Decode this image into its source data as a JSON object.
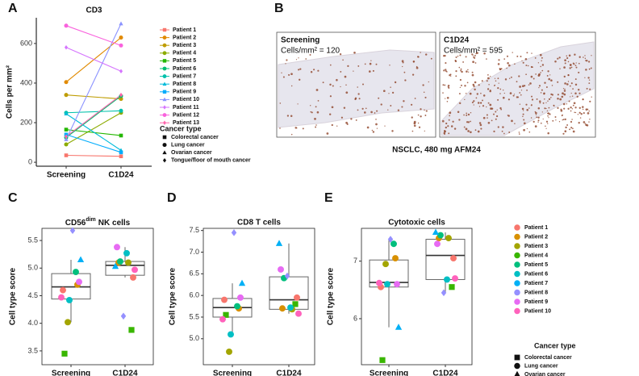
{
  "chart_data": [
    {
      "type": "line",
      "panel": "A",
      "title": "CD3",
      "y_label": "Cells per mm²",
      "categories": [
        "Screening",
        "C1D24"
      ],
      "ylim": [
        -20,
        730
      ],
      "yticks": [
        0,
        200,
        400,
        600
      ],
      "series": [
        {
          "name": "Patient 1",
          "color": "#F8766D",
          "marker": "square",
          "values": [
            35,
            30
          ]
        },
        {
          "name": "Patient 2",
          "color": "#E18A00",
          "marker": "circle",
          "values": [
            405,
            630
          ]
        },
        {
          "name": "Patient 3",
          "color": "#BE9C00",
          "marker": "circle",
          "values": [
            340,
            320
          ]
        },
        {
          "name": "Patient 4",
          "color": "#8CAB00",
          "marker": "circle",
          "values": [
            90,
            250
          ]
        },
        {
          "name": "Patient 5",
          "color": "#24B700",
          "marker": "square",
          "values": [
            165,
            135
          ]
        },
        {
          "name": "Patient 6",
          "color": "#00BE70",
          "marker": "circle",
          "values": [
            125,
            335
          ]
        },
        {
          "name": "Patient 7",
          "color": "#00C1AB",
          "marker": "circle",
          "values": [
            250,
            260
          ]
        },
        {
          "name": "Patient 8",
          "color": "#00BBDA",
          "marker": "triangle",
          "values": [
            245,
            60
          ]
        },
        {
          "name": "Patient 9",
          "color": "#00ACFC",
          "marker": "square",
          "values": [
            140,
            50
          ]
        },
        {
          "name": "Patient 10",
          "color": "#8B93FF",
          "marker": "triangle",
          "values": [
            115,
            700
          ]
        },
        {
          "name": "Patient 11",
          "color": "#D575FE",
          "marker": "diamond",
          "values": [
            580,
            460
          ]
        },
        {
          "name": "Patient 12",
          "color": "#F962DD",
          "marker": "circle",
          "values": [
            690,
            590
          ]
        },
        {
          "name": "Patient 13",
          "color": "#FF65AC",
          "marker": "diamond",
          "values": [
            130,
            340
          ]
        }
      ],
      "legend_title": "Cancer type",
      "cancer_types": [
        {
          "name": "Colorectal cancer",
          "marker": "square"
        },
        {
          "name": "Lung cancer",
          "marker": "circle"
        },
        {
          "name": "Ovarian cancer",
          "marker": "triangle"
        },
        {
          "name": "Tongue/floor of mouth cancer",
          "marker": "diamond"
        }
      ]
    },
    {
      "type": "box",
      "panel": "C",
      "title_parts": [
        "CD56",
        "dim",
        "NK cells"
      ],
      "y_label": "Cell type score",
      "categories": [
        "Screening",
        "C1D24"
      ],
      "ylim": [
        3.25,
        5.72
      ],
      "yticks": [
        3.5,
        {
          "value": 4,
          "label": "4.0"
        },
        4.5,
        {
          "value": 5,
          "label": "5.0"
        },
        5.5
      ],
      "boxes": [
        {
          "q1": 4.44,
          "median": 4.66,
          "q3": 4.9,
          "whisker_low": 4.02,
          "whisker_high": 5.15
        },
        {
          "q1": 4.87,
          "median": 5.05,
          "q3": 5.12,
          "whisker_low": 4.83,
          "whisker_high": 5.38
        }
      ],
      "series": [
        {
          "name": "Patient 1",
          "color": "#F8766D",
          "marker": "circle",
          "values": [
            4.6,
            4.83
          ]
        },
        {
          "name": "Patient 2",
          "color": "#D89000",
          "marker": "circle",
          "values": [
            4.7,
            5.1
          ]
        },
        {
          "name": "Patient 3",
          "color": "#A3A500",
          "marker": "circle",
          "values": [
            4.02,
            5.1
          ]
        },
        {
          "name": "Patient 4",
          "color": "#39B600",
          "marker": "square",
          "values": [
            3.45,
            3.88
          ]
        },
        {
          "name": "Patient 5",
          "color": "#00BF7D",
          "marker": "circle",
          "values": [
            4.93,
            5.12
          ]
        },
        {
          "name": "Patient 6",
          "color": "#00BFC4",
          "marker": "circle",
          "values": [
            4.42,
            5.27
          ]
        },
        {
          "name": "Patient 7",
          "color": "#00B0F6",
          "marker": "triangle",
          "values": [
            5.15,
            5.03
          ]
        },
        {
          "name": "Patient 8",
          "color": "#9590FF",
          "marker": "diamond",
          "values": [
            5.68,
            4.13
          ]
        },
        {
          "name": "Patient 9",
          "color": "#E76BF3",
          "marker": "circle",
          "values": [
            4.75,
            5.38
          ]
        },
        {
          "name": "Patient 10",
          "color": "#FF62BC",
          "marker": "circle",
          "values": [
            4.47,
            4.97
          ]
        }
      ],
      "legend_title": "Cancer type",
      "cancer_types": [
        {
          "name": "Colorectal cancer",
          "marker": "square"
        },
        {
          "name": "Lung cancer",
          "marker": "circle"
        },
        {
          "name": "Ovarian cancer",
          "marker": "triangle"
        },
        {
          "name": "Tongue/floor of mouth cancer",
          "marker": "diamond"
        }
      ]
    },
    {
      "type": "box",
      "panel": "D",
      "title": "CD8 T cells",
      "y_label": "Cell type score",
      "categories": [
        "Screening",
        "C1D24"
      ],
      "ylim": [
        4.4,
        7.55
      ],
      "yticks": [
        {
          "value": 5,
          "label": "5.0"
        },
        5.5,
        {
          "value": 6,
          "label": "6.0"
        },
        6.5,
        {
          "value": 7,
          "label": "7.0"
        },
        7.5
      ],
      "boxes": [
        {
          "q1": 5.5,
          "median": 5.72,
          "q3": 5.93,
          "whisker_low": 5.1,
          "whisker_high": 6.28
        },
        {
          "q1": 5.68,
          "median": 5.9,
          "q3": 6.43,
          "whisker_low": 5.58,
          "whisker_high": 7.2
        }
      ],
      "series": [
        {
          "name": "Patient 1",
          "color": "#F8766D",
          "marker": "circle",
          "values": [
            5.9,
            5.95
          ]
        },
        {
          "name": "Patient 2",
          "color": "#D89000",
          "marker": "circle",
          "values": [
            5.7,
            5.7
          ]
        },
        {
          "name": "Patient 3",
          "color": "#A3A500",
          "marker": "circle",
          "values": [
            4.7,
            5.68
          ]
        },
        {
          "name": "Patient 4",
          "color": "#39B600",
          "marker": "square",
          "values": [
            5.55,
            5.8
          ]
        },
        {
          "name": "Patient 5",
          "color": "#00BF7D",
          "marker": "circle",
          "values": [
            5.75,
            6.4
          ]
        },
        {
          "name": "Patient 6",
          "color": "#00BFC4",
          "marker": "circle",
          "values": [
            5.1,
            5.72
          ]
        },
        {
          "name": "Patient 7",
          "color": "#00B0F6",
          "marker": "triangle",
          "values": [
            6.28,
            7.2
          ]
        },
        {
          "name": "Patient 8",
          "color": "#9590FF",
          "marker": "diamond",
          "values": [
            7.45,
            6.45
          ]
        },
        {
          "name": "Patient 9",
          "color": "#E76BF3",
          "marker": "circle",
          "values": [
            5.95,
            6.6
          ]
        },
        {
          "name": "Patient 10",
          "color": "#FF62BC",
          "marker": "circle",
          "values": [
            5.45,
            5.58
          ]
        }
      ]
    },
    {
      "type": "box",
      "panel": "E",
      "title": "Cytotoxic cells",
      "y_label": "Cell type score",
      "categories": [
        "Screening",
        "C1D24"
      ],
      "ylim": [
        5.2,
        7.57
      ],
      "yticks": [
        6,
        7
      ],
      "boxes": [
        {
          "q1": 6.55,
          "median": 6.63,
          "q3": 7.02,
          "whisker_low": 5.85,
          "whisker_high": 7.38
        },
        {
          "q1": 6.68,
          "median": 7.1,
          "q3": 7.38,
          "whisker_low": 6.45,
          "whisker_high": 7.5
        }
      ],
      "series": [
        {
          "name": "Patient 1",
          "color": "#F8766D",
          "marker": "circle",
          "values": [
            6.55,
            7.05
          ]
        },
        {
          "name": "Patient 2",
          "color": "#D89000",
          "marker": "circle",
          "values": [
            7.05,
            7.4
          ]
        },
        {
          "name": "Patient 3",
          "color": "#A3A500",
          "marker": "circle",
          "values": [
            6.95,
            7.4
          ]
        },
        {
          "name": "Patient 4",
          "color": "#39B600",
          "marker": "square",
          "values": [
            5.28,
            6.55
          ]
        },
        {
          "name": "Patient 5",
          "color": "#00BF7D",
          "marker": "circle",
          "values": [
            7.3,
            7.45
          ]
        },
        {
          "name": "Patient 6",
          "color": "#00BFC4",
          "marker": "circle",
          "values": [
            6.6,
            6.68
          ]
        },
        {
          "name": "Patient 7",
          "color": "#00B0F6",
          "marker": "triangle",
          "values": [
            5.85,
            7.5
          ]
        },
        {
          "name": "Patient 8",
          "color": "#9590FF",
          "marker": "diamond",
          "values": [
            7.38,
            6.45
          ]
        },
        {
          "name": "Patient 9",
          "color": "#E76BF3",
          "marker": "circle",
          "values": [
            6.6,
            7.3
          ]
        },
        {
          "name": "Patient 10",
          "color": "#FF62BC",
          "marker": "circle",
          "values": [
            6.62,
            6.7
          ]
        }
      ]
    }
  ],
  "image_panel": {
    "panel": "B",
    "caption": "NSCLC, 480 mg AFM24",
    "images": [
      {
        "title": "Screening",
        "label": "Cells/mm² = 120"
      },
      {
        "title": "C1D24",
        "label": "Cells/mm² = 595"
      }
    ]
  }
}
